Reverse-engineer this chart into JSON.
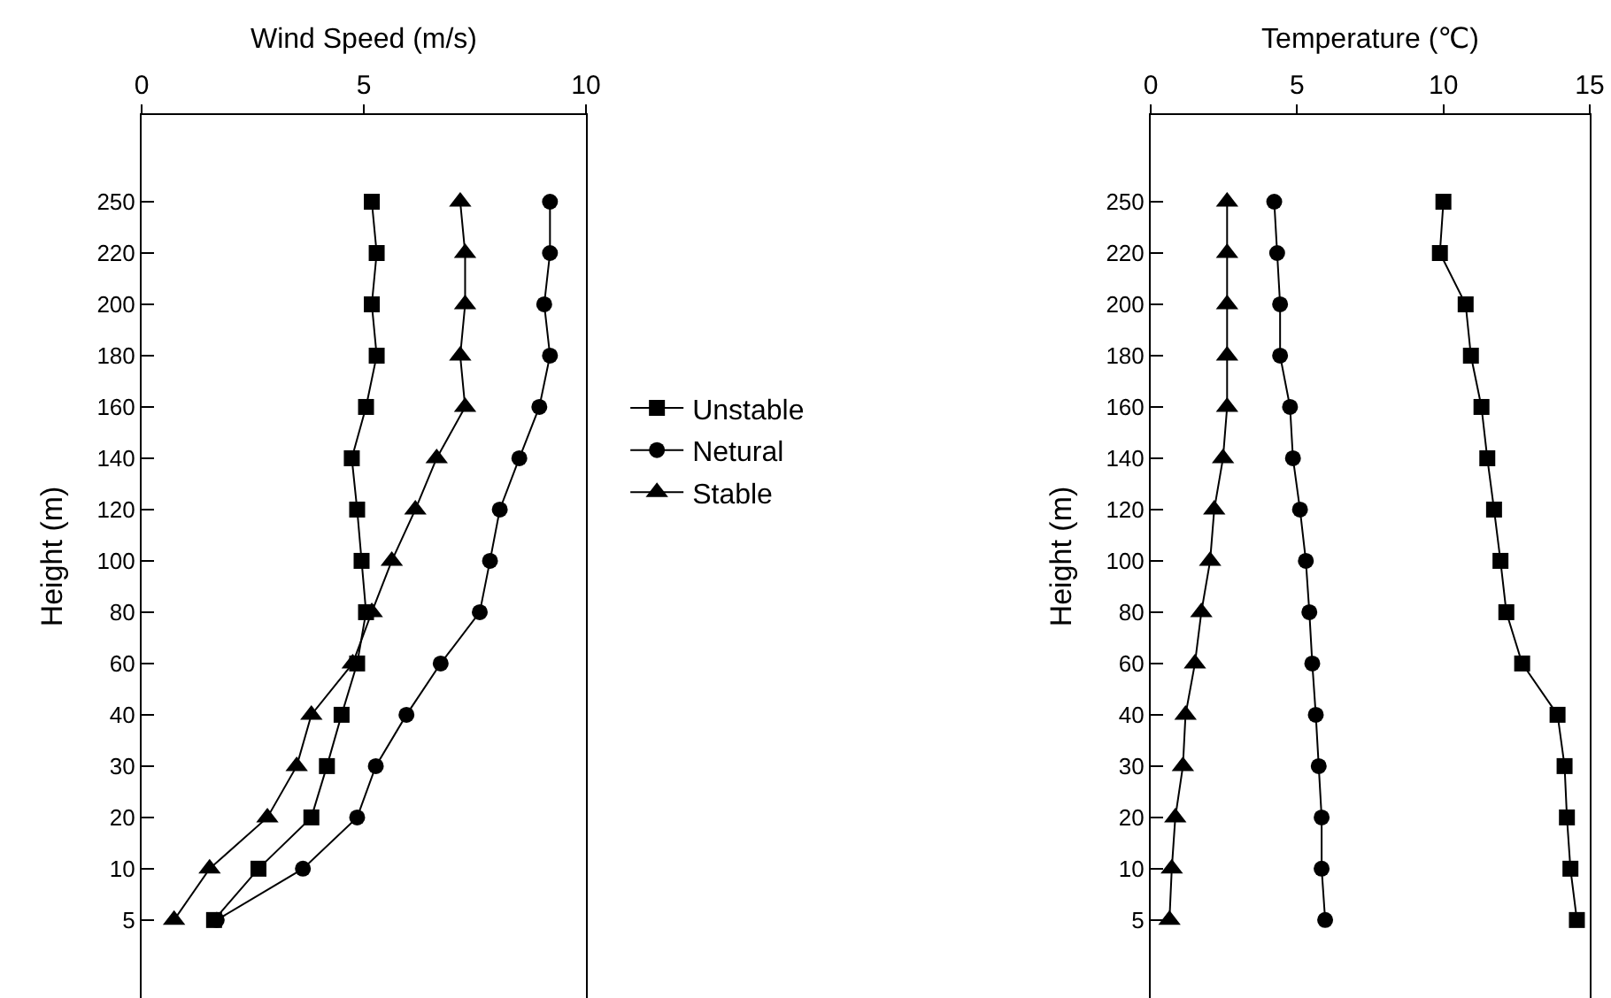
{
  "chart_data": [
    {
      "type": "line",
      "orientation": "horizontal",
      "xlabel": "Wind Speed (m/s)",
      "ylabel": "Height (m)",
      "categories": [
        "250",
        "220",
        "200",
        "180",
        "160",
        "140",
        "120",
        "100",
        "80",
        "60",
        "40",
        "30",
        "20",
        "10",
        "5"
      ],
      "xlim": [
        0,
        10
      ],
      "xticks": [
        0,
        5,
        10
      ],
      "legend": "right",
      "grid": false,
      "series": [
        {
          "name": "Unstable",
          "color": "#000000",
          "marker": "square",
          "values": [
            5.18,
            5.29,
            5.18,
            5.29,
            5.05,
            4.73,
            4.85,
            4.95,
            5.05,
            4.85,
            4.5,
            4.17,
            3.82,
            2.63,
            1.63
          ]
        },
        {
          "name": "Netural",
          "color": "#000000",
          "marker": "circle",
          "values": [
            9.19,
            9.19,
            9.06,
            9.19,
            8.95,
            8.5,
            8.06,
            7.84,
            7.61,
            6.73,
            5.96,
            5.27,
            4.85,
            3.63,
            1.69
          ]
        },
        {
          "name": "Stable",
          "color": "#000000",
          "marker": "triangle",
          "values": [
            7.17,
            7.28,
            7.28,
            7.17,
            7.28,
            6.64,
            6.16,
            5.63,
            5.18,
            4.75,
            3.82,
            3.49,
            2.83,
            1.53,
            0.73
          ]
        }
      ]
    },
    {
      "type": "line",
      "orientation": "horizontal",
      "xlabel": "Temperature (℃)",
      "ylabel": "Height (m)",
      "categories": [
        "250",
        "220",
        "200",
        "180",
        "160",
        "140",
        "120",
        "100",
        "80",
        "60",
        "40",
        "30",
        "20",
        "10",
        "5"
      ],
      "xlim": [
        0,
        15
      ],
      "xticks": [
        0,
        5,
        10,
        15
      ],
      "legend": false,
      "grid": false,
      "series": [
        {
          "color": "#000000",
          "marker": "square",
          "values": [
            10.0,
            9.88,
            10.76,
            10.94,
            11.3,
            11.5,
            11.73,
            11.95,
            12.15,
            12.69,
            13.9,
            14.14,
            14.22,
            14.34,
            14.56
          ]
        },
        {
          "color": "#000000",
          "marker": "circle",
          "values": [
            4.22,
            4.32,
            4.42,
            4.42,
            4.76,
            4.86,
            5.1,
            5.3,
            5.42,
            5.52,
            5.64,
            5.74,
            5.84,
            5.84,
            5.96
          ]
        },
        {
          "color": "#000000",
          "marker": "triangle",
          "values": [
            2.61,
            2.61,
            2.61,
            2.61,
            2.61,
            2.47,
            2.17,
            2.03,
            1.73,
            1.51,
            1.19,
            1.1,
            0.84,
            0.72,
            0.64
          ]
        }
      ]
    }
  ]
}
